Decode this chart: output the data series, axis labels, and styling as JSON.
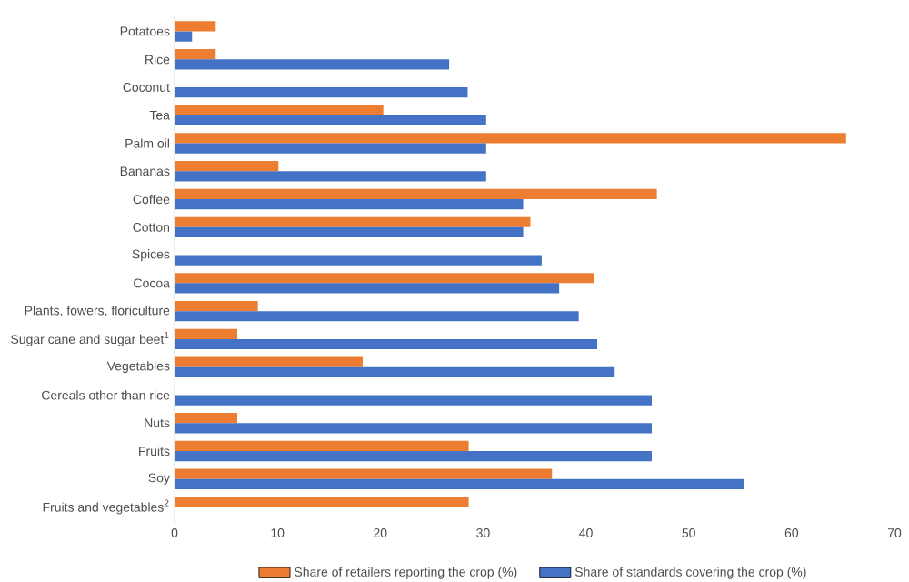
{
  "chart_data": {
    "type": "bar",
    "orientation": "horizontal",
    "categories": [
      "Potatoes",
      "Rice",
      "Coconut",
      "Tea",
      "Palm oil",
      "Bananas",
      "Coffee",
      "Cotton",
      "Spices",
      "Cocoa",
      "Plants, fowers, floriculture",
      "Sugar cane and sugar beet$^{1}$",
      "Vegetables",
      "Cereals other than rice",
      "Nuts",
      "Fruits",
      "Soy",
      "Fruits and vegetables$^{2}$"
    ],
    "series": [
      {
        "name": "Share of retailers reporting the crop (%)",
        "color": "#ed7d31",
        "values": [
          4.0,
          4.0,
          null,
          20.3,
          65.3,
          10.1,
          46.9,
          34.6,
          null,
          40.8,
          8.1,
          6.1,
          18.3,
          null,
          6.1,
          28.6,
          36.7,
          28.6
        ]
      },
      {
        "name": "Share of standards covering the crop (%)",
        "color": "#4472c4",
        "values": [
          1.7,
          26.7,
          28.5,
          30.3,
          30.3,
          30.3,
          33.9,
          33.9,
          35.7,
          37.4,
          39.3,
          41.1,
          42.8,
          46.4,
          46.4,
          46.4,
          55.4,
          null
        ]
      }
    ],
    "xlim": [
      0,
      70
    ],
    "xticks": [
      0,
      10,
      20,
      30,
      40,
      50,
      60,
      70
    ],
    "grid": false,
    "legend": "bottom"
  }
}
